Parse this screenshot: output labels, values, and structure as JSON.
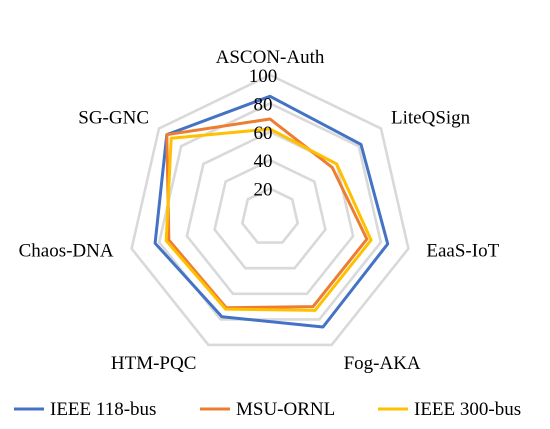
{
  "chart_data": {
    "type": "radar",
    "title": "",
    "axes": [
      "ASCON-Auth",
      "LiteQSign",
      "EaaS-IoT",
      "Fog-AKA",
      "HTM-PQC",
      "Chaos-DNA",
      "SG-GNC"
    ],
    "rlim": [
      0,
      100
    ],
    "ticks": [
      20,
      40,
      60,
      80,
      100
    ],
    "tick_labels": [
      "20",
      "40",
      "60",
      "80",
      "100"
    ],
    "grid": true,
    "legend_position": "bottom",
    "series": [
      {
        "name": "IEEE 118-bus",
        "color": "#4472C4",
        "values": [
          85,
          82,
          85,
          86,
          78,
          83,
          93
        ]
      },
      {
        "name": "MSU-ORNL",
        "color": "#ED7D31",
        "values": [
          69,
          56,
          70,
          70,
          71,
          73,
          93
        ]
      },
      {
        "name": "IEEE 300-bus",
        "color": "#FFC000",
        "values": [
          62,
          60,
          73,
          73,
          72,
          75,
          89
        ]
      }
    ],
    "grid_color": "#D9D9D9"
  }
}
